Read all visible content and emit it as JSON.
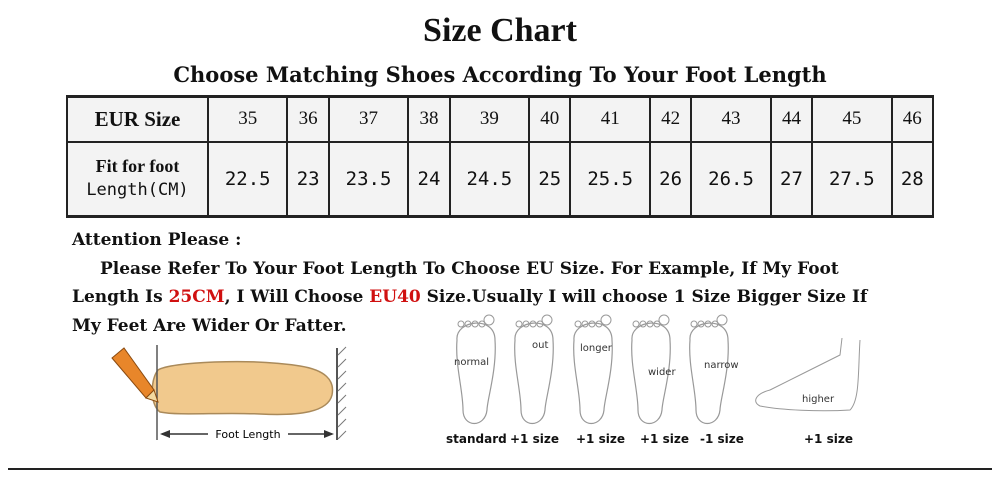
{
  "title": "Size Chart",
  "subtitle": "Choose Matching Shoes According To Your Foot Length",
  "table": {
    "row1_header": "EUR Size",
    "row2_header_line1": "Fit for foot",
    "row2_header_line2": "Length(CM)",
    "sizes": [
      "35",
      "36",
      "37",
      "38",
      "39",
      "40",
      "41",
      "42",
      "43",
      "44",
      "45",
      "46"
    ],
    "lengths": [
      "22.5",
      "23",
      "23.5",
      "24",
      "24.5",
      "25",
      "25.5",
      "26",
      "26.5",
      "27",
      "27.5",
      "28"
    ]
  },
  "attention": {
    "heading": "Attention Please :",
    "text1": "Please Refer To Your Foot Length To Choose EU Size. For Example, If My Foot",
    "text2a": "Length Is ",
    "highlight1": "25CM",
    "text2b": ", I Will Choose ",
    "highlight2": "EU40",
    "text2c": " Size.Usually I will choose 1 Size Bigger Size If",
    "text3": "My Feet Are Wider Or Fatter.",
    "highlight_color": "#d01010"
  },
  "diagram": {
    "foot_length_label": "Foot Length"
  },
  "foot_types": [
    {
      "label": "normal",
      "size": "standard"
    },
    {
      "label": "out",
      "size": "+1 size"
    },
    {
      "label": "longer",
      "size": "+1 size"
    },
    {
      "label": "wider",
      "size": "+1 size"
    },
    {
      "label": "narrow",
      "size": "-1 size"
    },
    {
      "label": "higher",
      "size": "+1 size"
    }
  ]
}
